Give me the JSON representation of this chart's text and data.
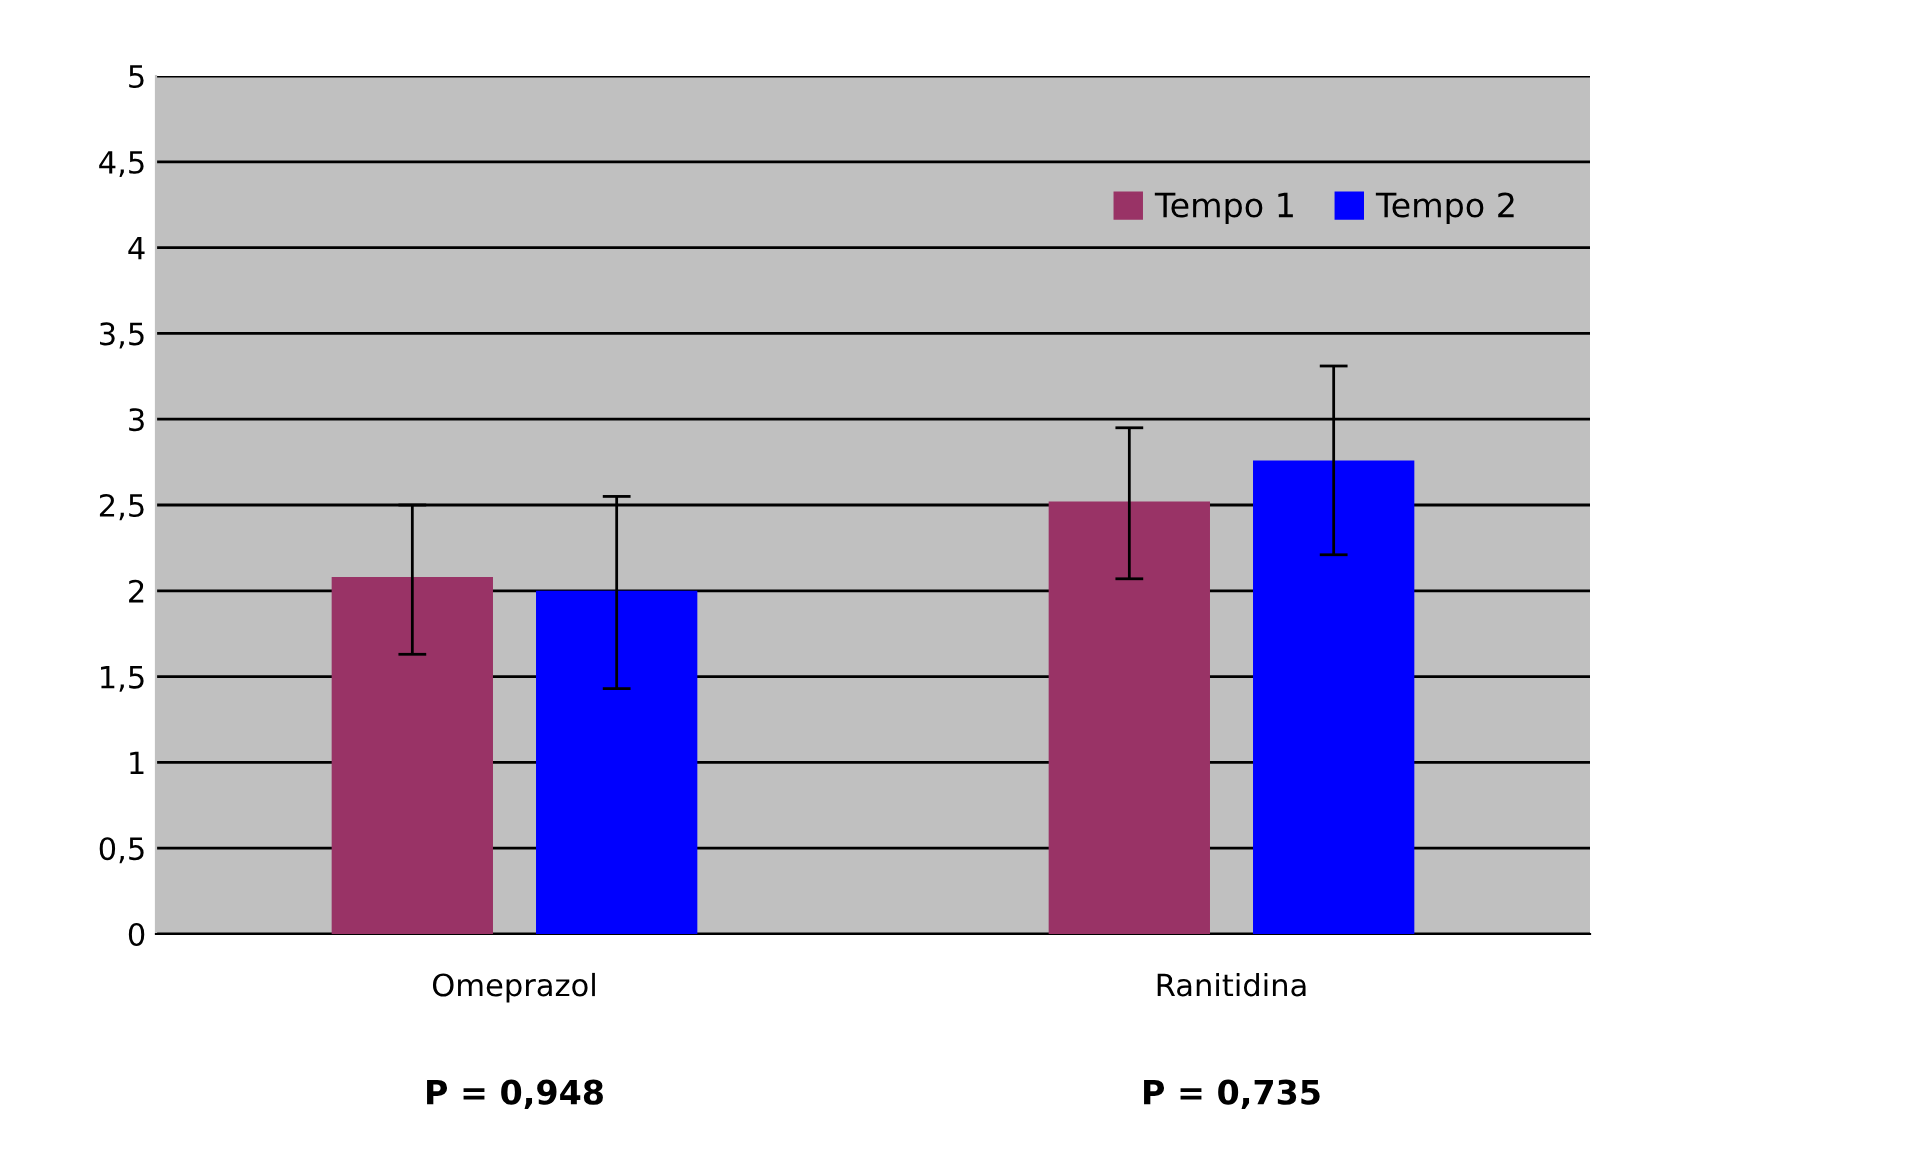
{
  "chart_data": {
    "type": "bar",
    "categories": [
      "Omeprazol",
      "Ranitidina"
    ],
    "series": [
      {
        "name": "Tempo 1",
        "color": "#993366",
        "values": [
          2.08,
          2.52
        ],
        "errors": [
          [
            1.63,
            2.5
          ],
          [
            2.07,
            2.95
          ]
        ]
      },
      {
        "name": "Tempo 2",
        "color": "#0000ff",
        "values": [
          2.0,
          2.76
        ],
        "errors": [
          [
            1.43,
            2.55
          ],
          [
            2.21,
            3.31
          ]
        ]
      }
    ],
    "ylim": [
      0,
      5
    ],
    "yticks": [
      0,
      {
        "value": 0.5,
        "label": "0,5"
      },
      1,
      {
        "value": 1.5,
        "label": "1,5"
      },
      2,
      {
        "value": 2.5,
        "label": "2,5"
      },
      3,
      {
        "value": 3.5,
        "label": "3,5"
      },
      4,
      {
        "value": 4.5,
        "label": "4,5"
      },
      5
    ],
    "grid": "y",
    "legend": "top right",
    "annotations": [
      "P = 0,948",
      "P = 0,735"
    ]
  }
}
